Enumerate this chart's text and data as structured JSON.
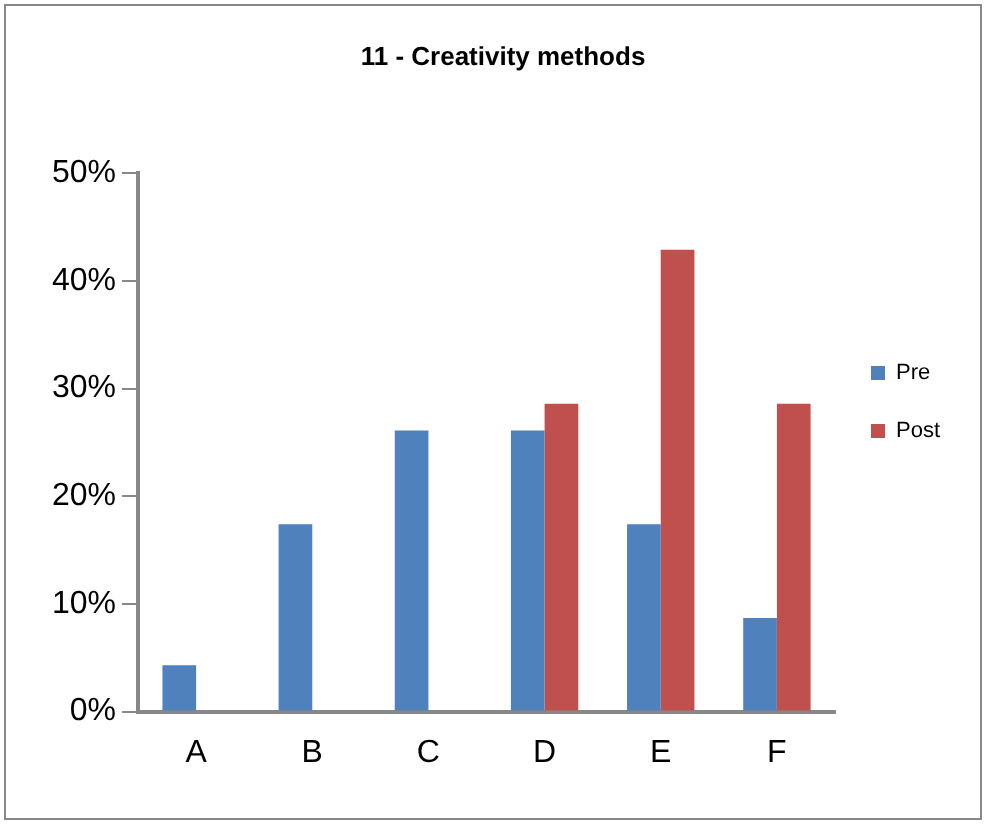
{
  "chart_data": {
    "type": "bar",
    "title": "11 - Creativity methods",
    "categories": [
      "A",
      "B",
      "C",
      "D",
      "E",
      "F"
    ],
    "series": [
      {
        "name": "Pre",
        "color": "#4f81bd",
        "values": [
          4.3,
          17.4,
          26.1,
          26.1,
          17.4,
          8.7
        ]
      },
      {
        "name": "Post",
        "color": "#c0504d",
        "values": [
          0,
          0,
          0,
          28.6,
          42.9,
          28.6
        ]
      }
    ],
    "ylim": [
      0,
      50
    ],
    "yticks": [
      {
        "value": 0,
        "label": "0%"
      },
      {
        "value": 10,
        "label": "10%"
      },
      {
        "value": 20,
        "label": "20%"
      },
      {
        "value": 30,
        "label": "30%"
      },
      {
        "value": 40,
        "label": "40%"
      },
      {
        "value": 50,
        "label": "50%"
      }
    ],
    "grid": false,
    "legend": "right"
  }
}
